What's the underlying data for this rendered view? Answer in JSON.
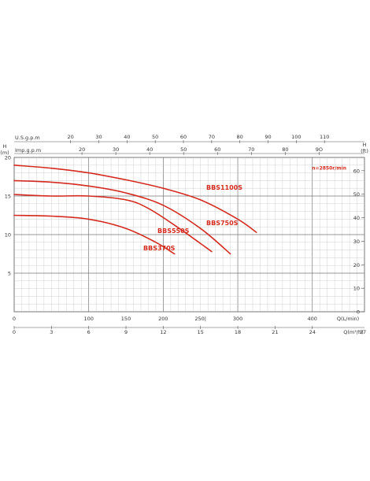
{
  "chart_data": {
    "type": "line",
    "top_axes": {
      "usgpm": {
        "label": "U.S.g.p.m",
        "ticks": [
          "20",
          "30",
          "40",
          "50",
          "60",
          "70",
          "80",
          "90",
          "100",
          "110"
        ],
        "per_lpm": 3.785
      },
      "impgpm": {
        "label": "Imp.g.p.m",
        "ticks": [
          "20",
          "30",
          "40",
          "50",
          "60",
          "70",
          "80",
          "90"
        ],
        "tick_text": {
          "90": "9O"
        },
        "per_lpm": 4.546
      }
    },
    "x_lpm": {
      "label": "Q(L/min)",
      "ticks": [
        "0",
        "100",
        "150",
        "200",
        "250",
        "300",
        "400"
      ],
      "tick_text": {
        "250": "250|"
      },
      "xlim": [
        0,
        470
      ]
    },
    "x_m3h": {
      "label": "Q(m³/h)",
      "ticks": [
        "0",
        "3",
        "6",
        "9",
        "12",
        "15",
        "18",
        "21",
        "24",
        "27"
      ]
    },
    "y_m": {
      "unit": "H",
      "unit2": "(m)",
      "ticks": [
        "5",
        "10",
        "15",
        "20"
      ],
      "ylim": [
        0,
        20
      ]
    },
    "y_ft": {
      "unit": "H",
      "unit2": "(ft)",
      "ticks": [
        "0",
        "10",
        "20",
        "30",
        "40",
        "50",
        "60"
      ],
      "per_m": 3.281
    },
    "speed_note": "n=2850r/min",
    "grid": true,
    "series": [
      {
        "name": "BBS1100S",
        "color": "#d42b1e",
        "x": [
          0,
          50,
          100,
          150,
          200,
          250,
          300,
          325
        ],
        "y": [
          19.0,
          18.6,
          18.0,
          17.1,
          16.0,
          14.5,
          12.0,
          10.3
        ]
      },
      {
        "name": "BBS750S",
        "color": "#d42b1e",
        "x": [
          0,
          50,
          100,
          150,
          200,
          250,
          290
        ],
        "y": [
          17.0,
          16.8,
          16.3,
          15.4,
          13.8,
          10.8,
          7.5
        ]
      },
      {
        "name": "BBS550S",
        "color": "#d42b1e",
        "x": [
          0,
          50,
          100,
          150,
          180,
          220,
          265
        ],
        "y": [
          15.2,
          15.0,
          15.0,
          14.5,
          13.4,
          10.9,
          7.8
        ]
      },
      {
        "name": "BBS370S",
        "color": "#d42b1e",
        "x": [
          0,
          50,
          100,
          150,
          190,
          215
        ],
        "y": [
          12.5,
          12.4,
          12.0,
          10.8,
          9.0,
          7.5
        ]
      }
    ]
  }
}
